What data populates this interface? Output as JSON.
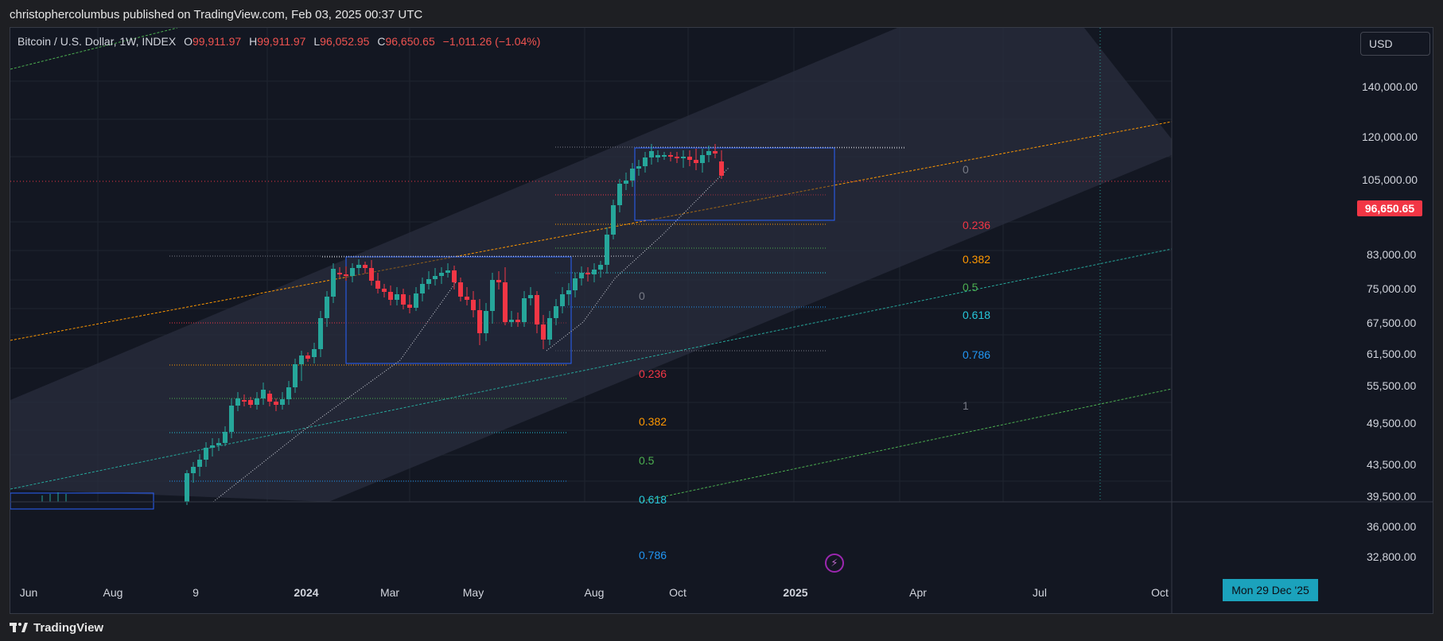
{
  "header": {
    "publisher_line": "christophercolumbus published on TradingView.com, Feb 03, 2025 00:37 UTC"
  },
  "legend": {
    "symbol": "Bitcoin / U.S. Dollar, 1W, INDEX",
    "open_label": "O",
    "open": "99,911.97",
    "high_label": "H",
    "high": "99,911.97",
    "low_label": "L",
    "low": "96,052.95",
    "close_label": "C",
    "close": "96,650.65",
    "change": "−1,011.26 (−1.04%)"
  },
  "currency_button": {
    "label": "USD"
  },
  "last_price_tag": {
    "label": "96,650.65"
  },
  "crosshair_date_tag": {
    "label": "Mon 29 Dec '25"
  },
  "price_axis": {
    "ticks": [
      "140,000.00",
      "120,000.00",
      "105,000.00",
      "83,000.00",
      "75,000.00",
      "67,500.00",
      "61,500.00",
      "55,500.00",
      "49,500.00",
      "43,500.00",
      "39,500.00",
      "36,000.00",
      "32,800.00"
    ]
  },
  "time_axis": {
    "ticks": [
      {
        "label": "Jun",
        "bold": false
      },
      {
        "label": "Aug",
        "bold": false
      },
      {
        "label": "9",
        "bold": false
      },
      {
        "label": "2024",
        "bold": true
      },
      {
        "label": "Mar",
        "bold": false
      },
      {
        "label": "May",
        "bold": false
      },
      {
        "label": "Aug",
        "bold": false
      },
      {
        "label": "Oct",
        "bold": false
      },
      {
        "label": "2025",
        "bold": true
      },
      {
        "label": "Apr",
        "bold": false
      },
      {
        "label": "Jul",
        "bold": false
      },
      {
        "label": "Oct",
        "bold": false
      }
    ]
  },
  "fib_upper": {
    "levels": [
      {
        "label": "0",
        "color": "#787b86"
      },
      {
        "label": "0.236",
        "color": "#f23645"
      },
      {
        "label": "0.382",
        "color": "#ff9800"
      },
      {
        "label": "0.5",
        "color": "#4caf50"
      },
      {
        "label": "0.618",
        "color": "#26c6da"
      },
      {
        "label": "0.786",
        "color": "#2196f3"
      },
      {
        "label": "1",
        "color": "#787b86"
      }
    ]
  },
  "fib_lower": {
    "levels": [
      {
        "label": "0",
        "color": "#787b86"
      },
      {
        "label": "0.236",
        "color": "#f23645"
      },
      {
        "label": "0.382",
        "color": "#ff9800"
      },
      {
        "label": "0.5",
        "color": "#4caf50"
      },
      {
        "label": "0.618",
        "color": "#26c6da"
      },
      {
        "label": "0.786",
        "color": "#2196f3"
      }
    ]
  },
  "footer": {
    "brand": "TradingView"
  },
  "colors": {
    "up": "#26a69a",
    "down": "#f23645",
    "background": "#131722"
  }
}
